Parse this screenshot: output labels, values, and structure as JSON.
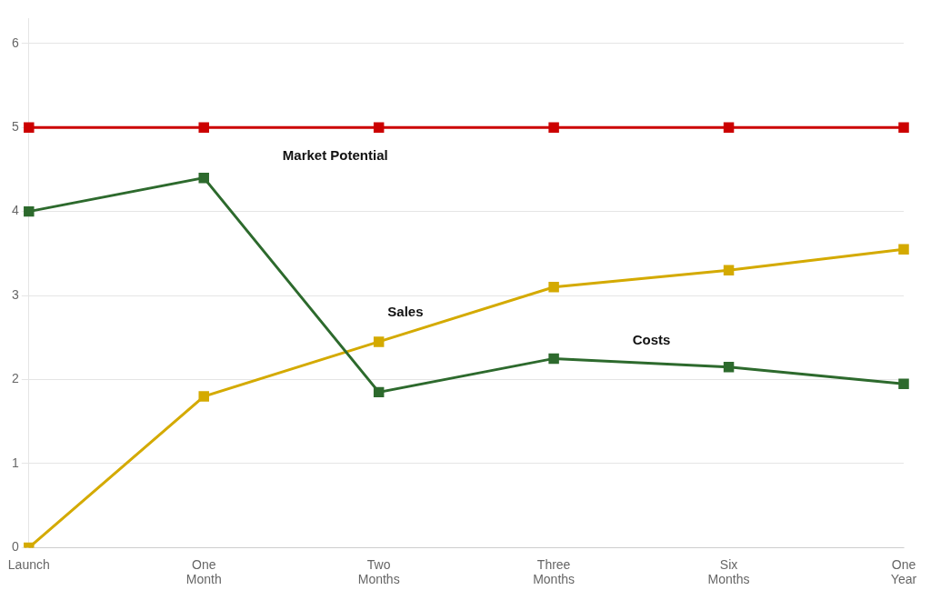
{
  "chart_data": {
    "type": "line",
    "categories": [
      "Launch",
      "One\nMonth",
      "Two\nMonths",
      "Three\nMonths",
      "Six\nMonths",
      "One\nYear"
    ],
    "series": [
      {
        "name": "Market Potential",
        "color": "#cc0000",
        "values": [
          5.0,
          5.0,
          5.0,
          5.0,
          5.0,
          5.0
        ]
      },
      {
        "name": "Costs",
        "color": "#2d6a2d",
        "values": [
          4.0,
          4.4,
          1.85,
          2.25,
          2.15,
          1.95
        ]
      },
      {
        "name": "Sales",
        "color": "#d4aa00",
        "values": [
          0.0,
          1.8,
          2.45,
          3.1,
          3.3,
          3.55
        ]
      }
    ],
    "annotations": [
      {
        "text": "Market Potential",
        "x": 1.45,
        "y": 4.58
      },
      {
        "text": "Sales",
        "x": 2.05,
        "y": 2.72
      },
      {
        "text": "Costs",
        "x": 3.45,
        "y": 2.38
      }
    ],
    "marker": "square",
    "line_style": "solid",
    "ylim": [
      0,
      6.3
    ],
    "yticks": [
      0,
      1,
      2,
      3,
      4,
      5,
      6
    ],
    "grid": true
  }
}
